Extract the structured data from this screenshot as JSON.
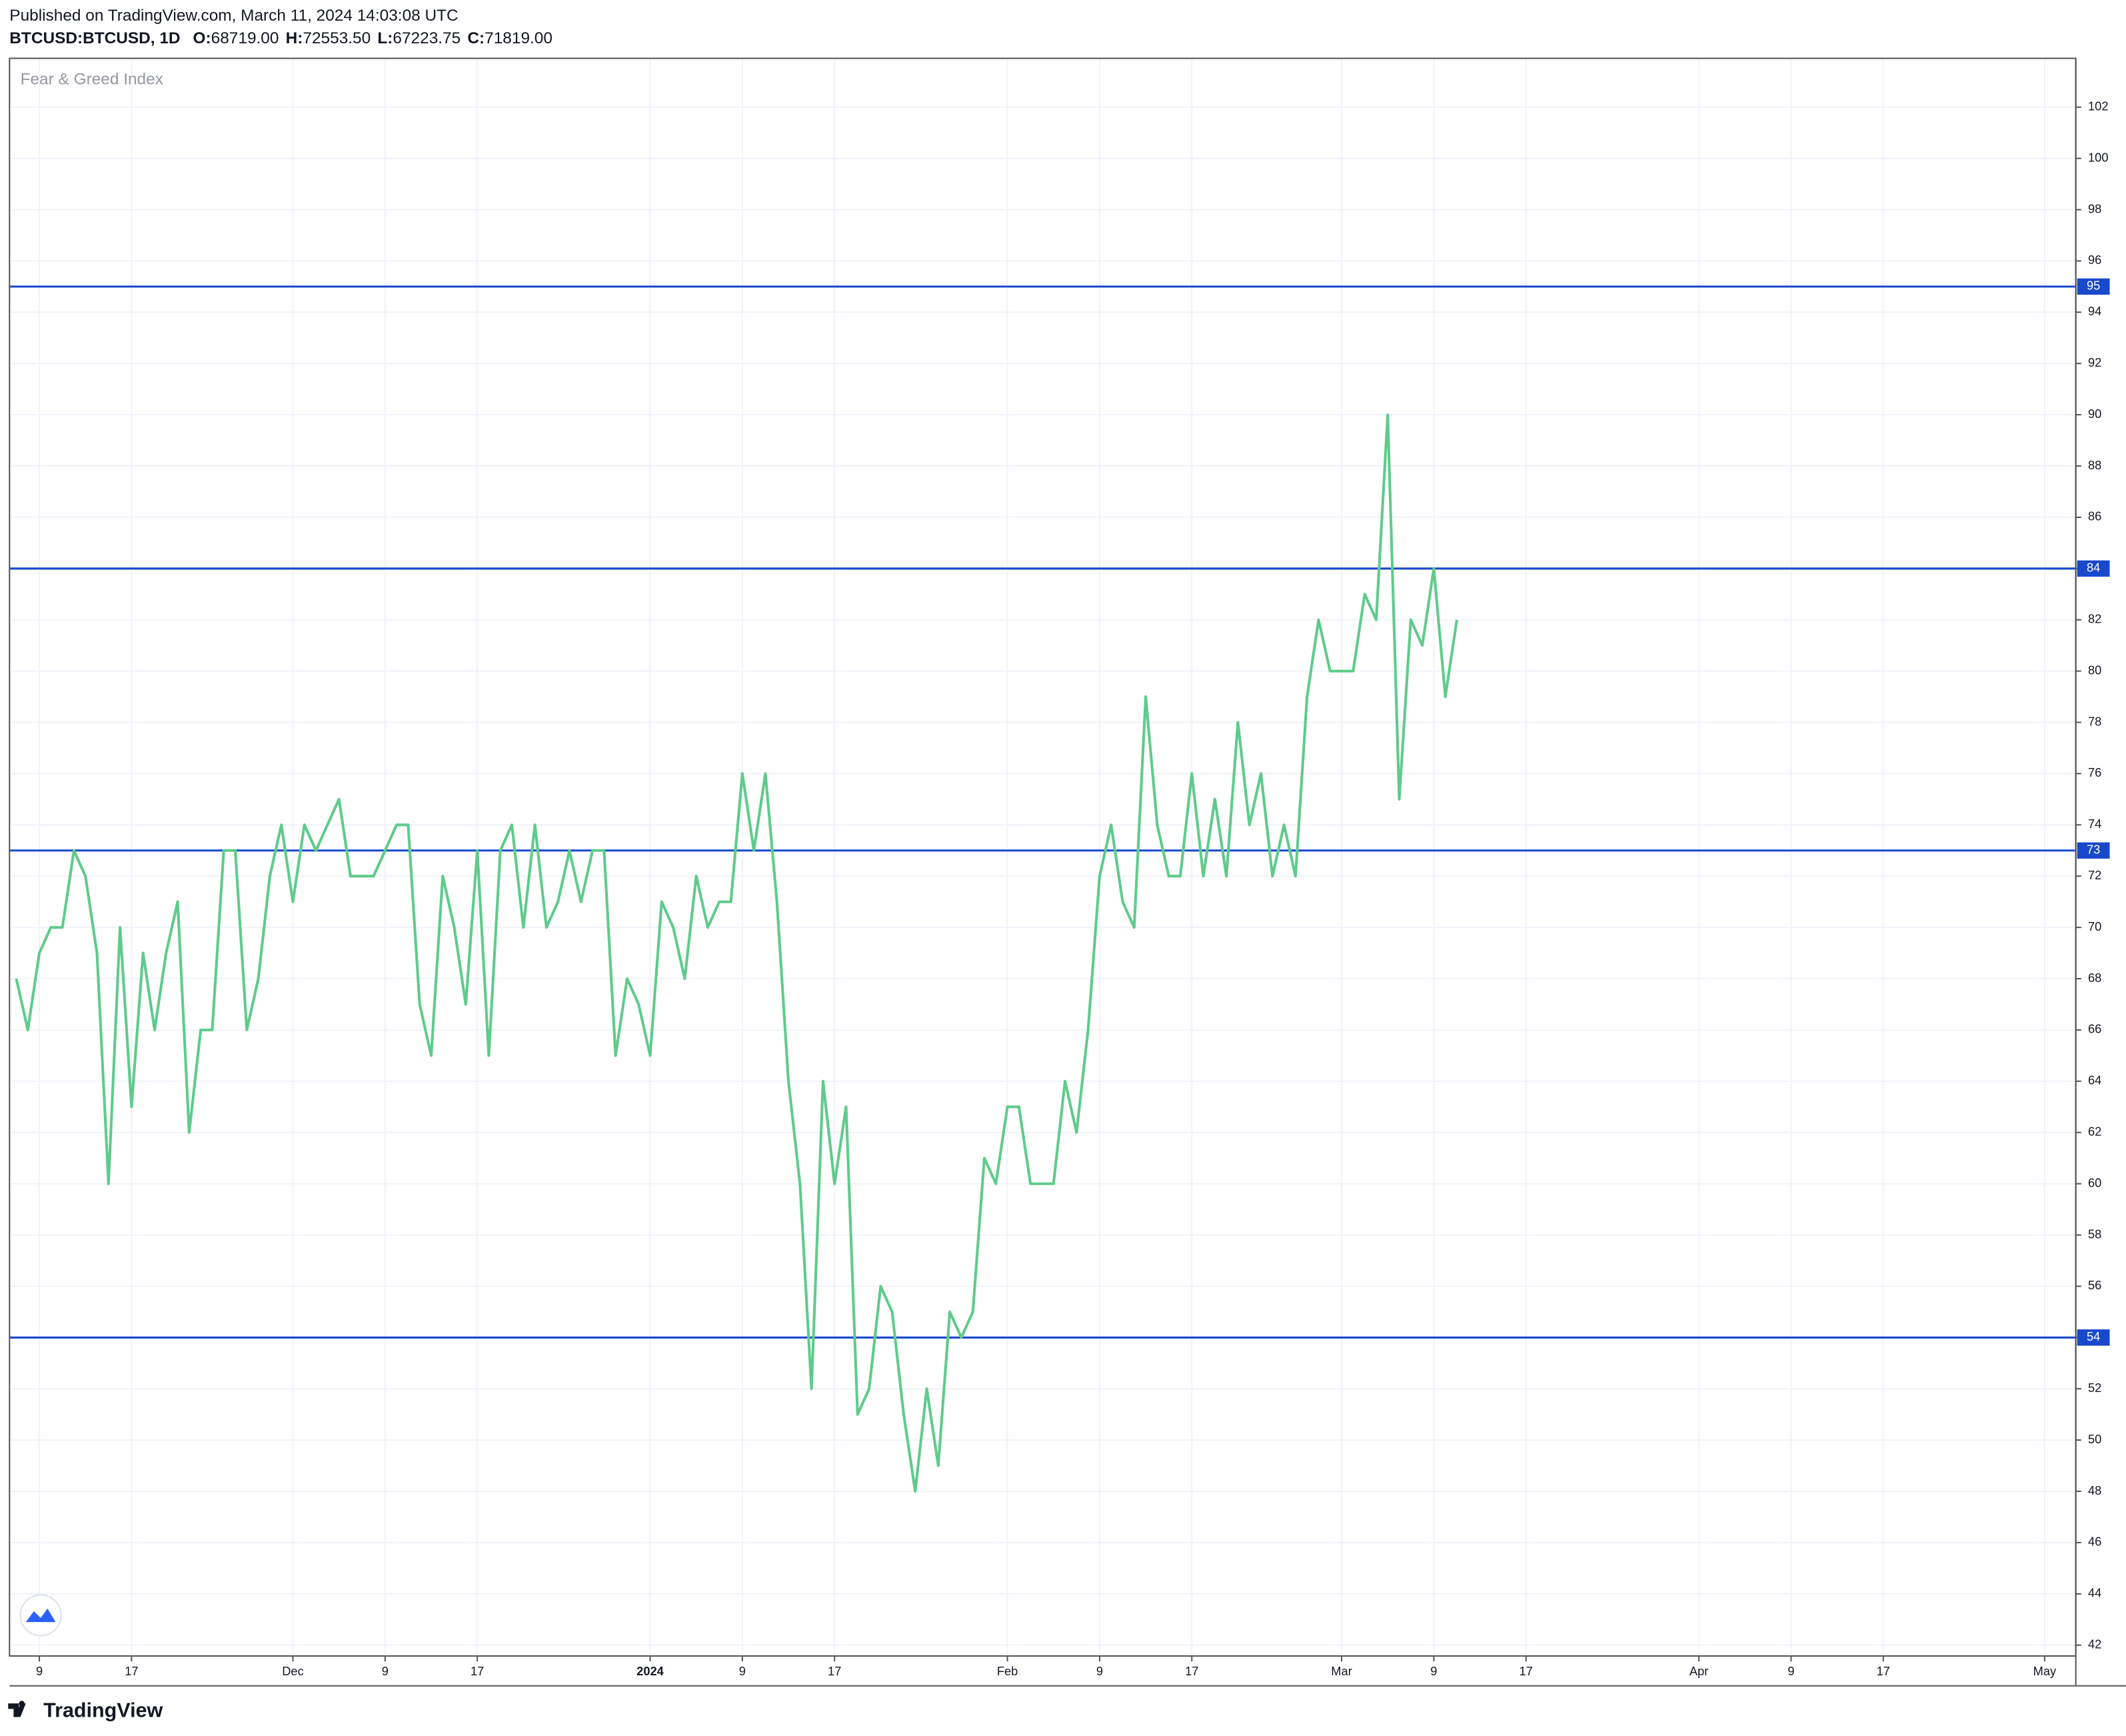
{
  "header": {
    "published": "Published on TradingView.com, March 11, 2024 14:03:08 UTC",
    "symbol": "BTCUSD:BTCUSD, 1D",
    "ohlc": [
      {
        "label": "O:",
        "value": "68719.00"
      },
      {
        "label": "H:",
        "value": "72553.50"
      },
      {
        "label": "L:",
        "value": "67223.75"
      },
      {
        "label": "C:",
        "value": "71819.00"
      }
    ]
  },
  "chart_data": {
    "type": "line",
    "title": "Fear & Greed Index",
    "color": "#5fcb8b",
    "x": [
      "2023-11-07",
      "2023-11-08",
      "2023-11-09",
      "2023-11-10",
      "2023-11-11",
      "2023-11-12",
      "2023-11-13",
      "2023-11-14",
      "2023-11-15",
      "2023-11-16",
      "2023-11-17",
      "2023-11-18",
      "2023-11-19",
      "2023-11-20",
      "2023-11-21",
      "2023-11-22",
      "2023-11-23",
      "2023-11-24",
      "2023-11-25",
      "2023-11-26",
      "2023-11-27",
      "2023-11-28",
      "2023-11-29",
      "2023-11-30",
      "2023-12-01",
      "2023-12-02",
      "2023-12-03",
      "2023-12-04",
      "2023-12-05",
      "2023-12-06",
      "2023-12-07",
      "2023-12-08",
      "2023-12-09",
      "2023-12-10",
      "2023-12-11",
      "2023-12-12",
      "2023-12-13",
      "2023-12-14",
      "2023-12-15",
      "2023-12-16",
      "2023-12-17",
      "2023-12-18",
      "2023-12-19",
      "2023-12-20",
      "2023-12-21",
      "2023-12-22",
      "2023-12-23",
      "2023-12-24",
      "2023-12-25",
      "2023-12-26",
      "2023-12-27",
      "2023-12-28",
      "2023-12-29",
      "2023-12-30",
      "2023-12-31",
      "2024-01-01",
      "2024-01-02",
      "2024-01-03",
      "2024-01-04",
      "2024-01-05",
      "2024-01-06",
      "2024-01-07",
      "2024-01-08",
      "2024-01-09",
      "2024-01-10",
      "2024-01-11",
      "2024-01-12",
      "2024-01-13",
      "2024-01-14",
      "2024-01-15",
      "2024-01-16",
      "2024-01-17",
      "2024-01-18",
      "2024-01-19",
      "2024-01-20",
      "2024-01-21",
      "2024-01-22",
      "2024-01-23",
      "2024-01-24",
      "2024-01-25",
      "2024-01-26",
      "2024-01-27",
      "2024-01-28",
      "2024-01-29",
      "2024-01-30",
      "2024-01-31",
      "2024-02-01",
      "2024-02-02",
      "2024-02-03",
      "2024-02-04",
      "2024-02-05",
      "2024-02-06",
      "2024-02-07",
      "2024-02-08",
      "2024-02-09",
      "2024-02-10",
      "2024-02-11",
      "2024-02-12",
      "2024-02-13",
      "2024-02-14",
      "2024-02-15",
      "2024-02-16",
      "2024-02-17",
      "2024-02-18",
      "2024-02-19",
      "2024-02-20",
      "2024-02-21",
      "2024-02-22",
      "2024-02-23",
      "2024-02-24",
      "2024-02-25",
      "2024-02-26",
      "2024-02-27",
      "2024-02-28",
      "2024-02-29",
      "2024-03-01",
      "2024-03-02",
      "2024-03-03",
      "2024-03-04",
      "2024-03-05",
      "2024-03-06",
      "2024-03-07",
      "2024-03-08",
      "2024-03-09",
      "2024-03-10",
      "2024-03-11"
    ],
    "values": [
      68,
      66,
      69,
      70,
      70,
      73,
      72,
      69,
      60,
      70,
      63,
      69,
      66,
      69,
      71,
      62,
      66,
      66,
      73,
      73,
      66,
      68,
      72,
      74,
      71,
      74,
      73,
      74,
      75,
      72,
      72,
      72,
      73,
      74,
      74,
      67,
      65,
      72,
      70,
      67,
      73,
      65,
      73,
      74,
      70,
      74,
      70,
      71,
      73,
      71,
      73,
      73,
      65,
      68,
      67,
      65,
      71,
      70,
      68,
      72,
      70,
      71,
      71,
      76,
      73,
      76,
      71,
      64,
      60,
      52,
      64,
      60,
      63,
      51,
      52,
      56,
      55,
      51,
      48,
      52,
      49,
      55,
      54,
      55,
      61,
      60,
      63,
      63,
      60,
      60,
      60,
      64,
      62,
      66,
      72,
      74,
      71,
      70,
      79,
      74,
      72,
      72,
      76,
      72,
      75,
      72,
      78,
      74,
      76,
      72,
      74,
      72,
      79,
      82,
      80,
      80,
      80,
      83,
      82,
      90,
      75,
      82,
      81,
      84,
      79,
      82
    ],
    "xlim": [
      "2023-11-07",
      "2024-05-03"
    ],
    "xticks": [
      {
        "value": "2023-11-09",
        "label": "9"
      },
      {
        "value": "2023-11-17",
        "label": "17"
      },
      {
        "value": "2023-12-01",
        "label": "Dec"
      },
      {
        "value": "2023-12-09",
        "label": "9"
      },
      {
        "value": "2023-12-17",
        "label": "17"
      },
      {
        "value": "2024-01-01",
        "label": "2024"
      },
      {
        "value": "2024-01-09",
        "label": "9"
      },
      {
        "value": "2024-01-17",
        "label": "17"
      },
      {
        "value": "2024-02-01",
        "label": "Feb"
      },
      {
        "value": "2024-02-09",
        "label": "9"
      },
      {
        "value": "2024-02-17",
        "label": "17"
      },
      {
        "value": "2024-03-01",
        "label": "Mar"
      },
      {
        "value": "2024-03-09",
        "label": "9"
      },
      {
        "value": "2024-03-17",
        "label": "17"
      },
      {
        "value": "2024-04-01",
        "label": "Apr"
      },
      {
        "value": "2024-04-09",
        "label": "9"
      },
      {
        "value": "2024-04-17",
        "label": "17"
      },
      {
        "value": "2024-05-01",
        "label": "May"
      }
    ],
    "ylim": [
      42,
      102
    ],
    "yticks": [
      42,
      44,
      46,
      48,
      50,
      52,
      54,
      56,
      58,
      60,
      62,
      64,
      66,
      68,
      70,
      72,
      74,
      76,
      78,
      80,
      82,
      84,
      86,
      88,
      90,
      92,
      94,
      96,
      98,
      100,
      102
    ],
    "grid": true,
    "hlines": [
      95,
      84,
      73,
      54
    ],
    "hline_color": "#1848cc"
  },
  "footer": {
    "brand": "TradingView"
  }
}
